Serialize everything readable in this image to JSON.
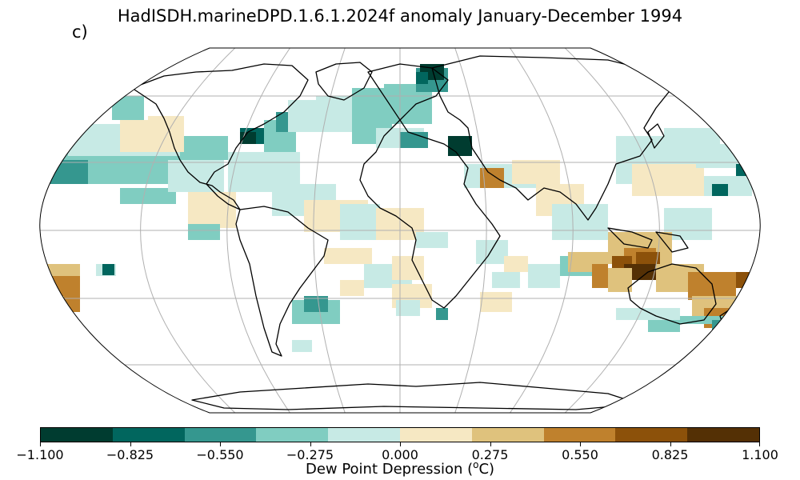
{
  "figure": {
    "title": "HadISDH.marineDPD.1.6.1.2024f anomaly January-December 1994",
    "panel_label": "c)"
  },
  "map": {
    "projection": "Robinson",
    "features": [
      "graticule",
      "coastlines",
      "gridded anomaly cells"
    ]
  },
  "colorbar": {
    "label_prefix": "Dew Point Depression (",
    "label_unit_sup": "o",
    "label_suffix": "C)",
    "colors": [
      "#003c30",
      "#01665e",
      "#35978f",
      "#80cdc1",
      "#c7eae5",
      "#f6e8c3",
      "#dfc27d",
      "#bf812d",
      "#8c510a",
      "#543005"
    ],
    "tick_labels": [
      "−1.100",
      "−0.825",
      "−0.550",
      "−0.275",
      "0.000",
      "0.275",
      "0.550",
      "0.825",
      "1.100"
    ]
  }
}
